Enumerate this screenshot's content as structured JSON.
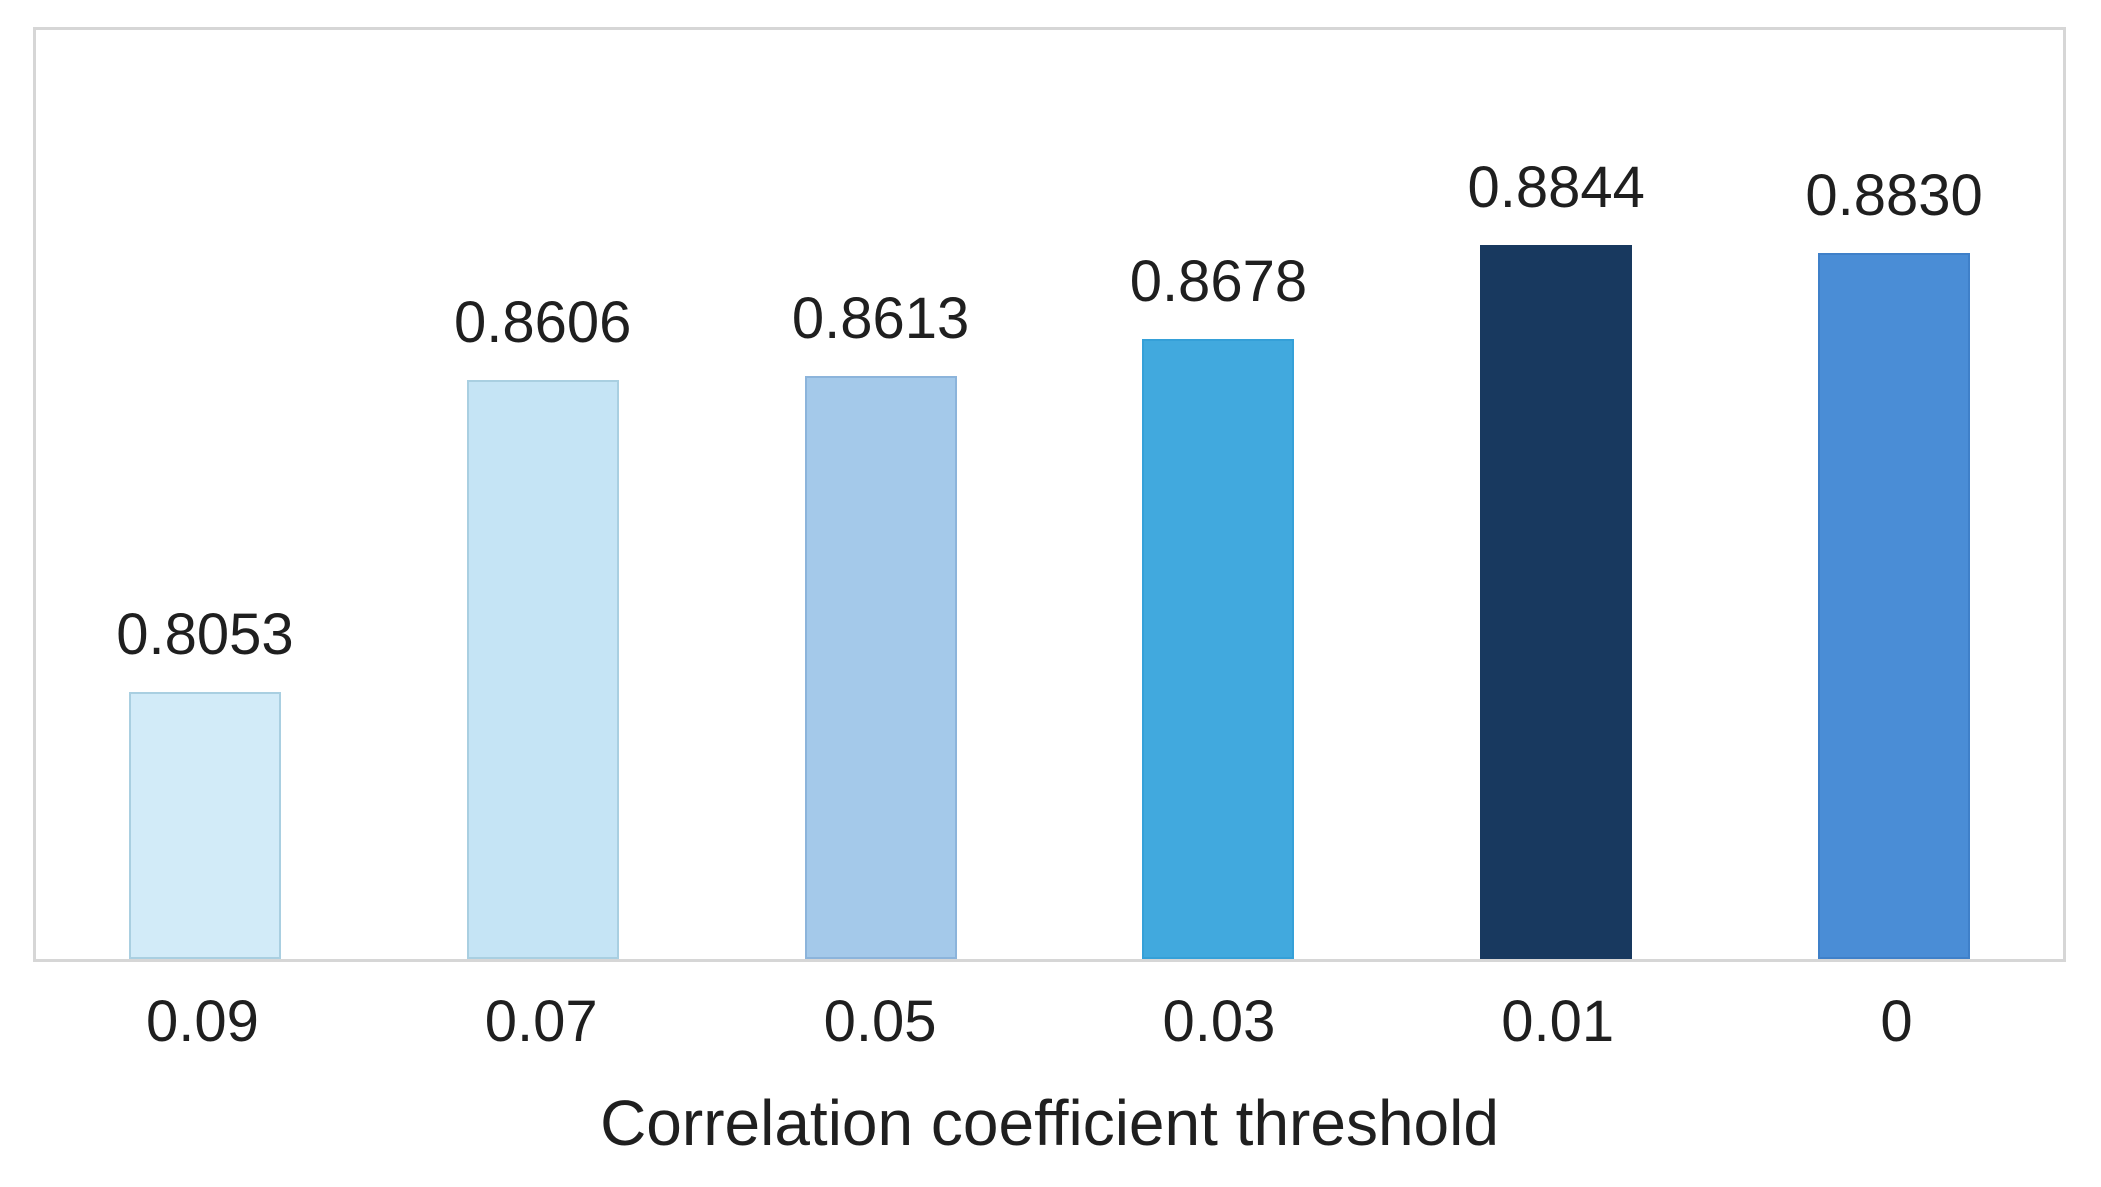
{
  "chart_data": {
    "type": "bar",
    "title": "",
    "categories": [
      "0.09",
      "0.07",
      "0.05",
      "0.03",
      "0.01",
      "0"
    ],
    "values": [
      0.8053,
      0.8606,
      0.8613,
      0.8678,
      0.8844,
      0.883
    ],
    "value_labels": [
      "0.8053",
      "0.8606",
      "0.8613",
      "0.8678",
      "0.8844",
      "0.8830"
    ],
    "xlabel": "Correlation coefficient threshold",
    "ylabel": "",
    "ylim": [
      0.758,
      0.9225
    ],
    "grid": false,
    "legend": false,
    "bar_colors": [
      "#D2EBF8",
      "#C5E4F5",
      "#A4C9EA",
      "#41A9DE",
      "#18395F",
      "#4A8DD6"
    ],
    "bar_border_colors": [
      "#A9CFE1",
      "#A9CFE1",
      "#8CB4DB",
      "#35A0D8",
      "#18395F",
      "#3F80C9"
    ],
    "text_color": "#1F1F1F",
    "axis_box_color": "#D6D6D6",
    "background": "#FFFFFF"
  }
}
